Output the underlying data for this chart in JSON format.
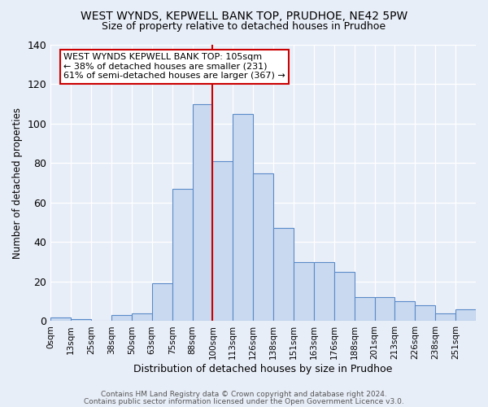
{
  "title": "WEST WYNDS, KEPWELL BANK TOP, PRUDHOE, NE42 5PW",
  "subtitle": "Size of property relative to detached houses in Prudhoe",
  "xlabel": "Distribution of detached houses by size in Prudhoe",
  "ylabel": "Number of detached properties",
  "bin_edges": [
    "0sqm",
    "13sqm",
    "25sqm",
    "38sqm",
    "50sqm",
    "63sqm",
    "75sqm",
    "88sqm",
    "100sqm",
    "113sqm",
    "126sqm",
    "138sqm",
    "151sqm",
    "163sqm",
    "176sqm",
    "188sqm",
    "201sqm",
    "213sqm",
    "226sqm",
    "238sqm",
    "251sqm"
  ],
  "bar_values": [
    2,
    1,
    0,
    3,
    4,
    19,
    67,
    110,
    81,
    105,
    75,
    47,
    30,
    30,
    25,
    12,
    12,
    10,
    8,
    4,
    6
  ],
  "bar_color": "#c9d9f0",
  "bar_edge_color": "#5b8bc9",
  "vline_x": 8,
  "vline_color": "#cc0000",
  "ylim": [
    0,
    140
  ],
  "yticks": [
    0,
    20,
    40,
    60,
    80,
    100,
    120,
    140
  ],
  "annotation_title": "WEST WYNDS KEPWELL BANK TOP: 105sqm",
  "annotation_line1": "← 38% of detached houses are smaller (231)",
  "annotation_line2": "61% of semi-detached houses are larger (367) →",
  "annotation_box_color": "#ffffff",
  "annotation_box_edge": "#cc0000",
  "footer1": "Contains HM Land Registry data © Crown copyright and database right 2024.",
  "footer2": "Contains public sector information licensed under the Open Government Licence v3.0.",
  "background_color": "#e8eef8",
  "plot_background": "#e8eef8",
  "title_fontsize": 10,
  "subtitle_fontsize": 9
}
